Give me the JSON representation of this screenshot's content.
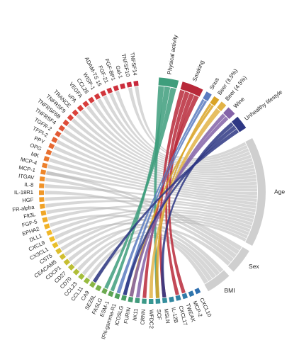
{
  "colors": {
    "background": "#ffffff",
    "protein_chord": "#b7b7b7",
    "demographic": "#cfcfcf",
    "physical_activity": "#3e9e7c",
    "smoking": "#b8293a",
    "snus": "#5b7bc0",
    "beer_35": "#d9a326",
    "beer_45": "#e2b347",
    "wine": "#8463a8",
    "unhealthy_lifestyle": "#2e3784"
  },
  "lifestyle_factors": [
    {
      "id": "physical_activity",
      "label": "Physical activity"
    },
    {
      "id": "smoking",
      "label": "Smoking"
    },
    {
      "id": "snus",
      "label": "Snus"
    },
    {
      "id": "beer_35",
      "label": "Beer (3.5%)"
    },
    {
      "id": "beer_45",
      "label": "Beer (4.5%)"
    },
    {
      "id": "wine",
      "label": "Wine"
    },
    {
      "id": "unhealthy_lifestyle",
      "label": "Unhealthy lifestyle"
    }
  ],
  "demographics": [
    {
      "id": "age",
      "label": "Age"
    },
    {
      "id": "sex",
      "label": "Sex"
    },
    {
      "id": "bmi",
      "label": "BMI"
    }
  ],
  "proteins": [
    "CXCL10",
    "MCP-2",
    "TWEAK",
    "CXCL17",
    "IL-12B",
    "MSLN",
    "SCF",
    "WFDC2",
    "CRNN",
    "hK11",
    "FURIN",
    "ICOSLG",
    "IFN-gamma-R1",
    "ESM-1",
    "FASLG",
    "SEZ6L",
    "CA9",
    "CCL11",
    "CCL23",
    "CD70",
    "CD27",
    "CDCP1",
    "CEACAM5",
    "CST5",
    "CX3CL1",
    "CXCL9",
    "DLL1",
    "EPHA2",
    "FGF-5",
    "Flt3L",
    "FR-alpha",
    "HGF",
    "IL-18R1",
    "IL-8",
    "ITGAV",
    "MCP-1",
    "MCP-4",
    "MK",
    "OPG",
    "PPY",
    "TFPI-2",
    "TGFR-2",
    "TNFRSF4",
    "TNFRSF6B",
    "TNFRSF9",
    "TRANCE",
    "uPA",
    "VEGFA",
    "CCL28",
    "WISP-1",
    "ADAM-TS 15",
    "FGF-21",
    "FGF-BP1",
    "Gal-1",
    "TNFSF10",
    "TNFSF14"
  ]
}
